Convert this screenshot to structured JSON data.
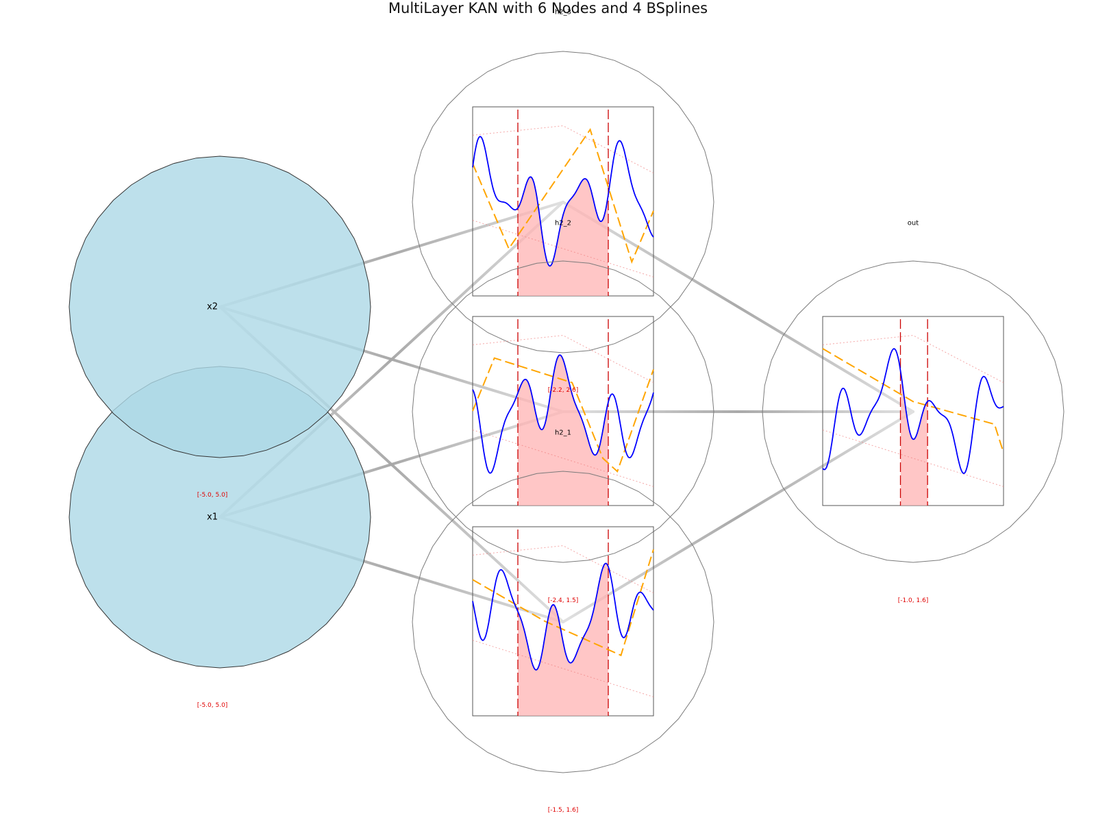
{
  "title": "MultiLayer KAN with 6 Nodes and 4 BSplines",
  "colors": {
    "input_fill": "#add8e6",
    "spline": "#0000ff",
    "trend": "#ffa500",
    "shade": "#ffb3b3",
    "bounds": "#cc0000",
    "range_text": "#e00000",
    "edge": "#999999"
  },
  "nodes": {
    "x2": {
      "label": "x2",
      "range": "[-5.0, 5.0]"
    },
    "x1": {
      "label": "x1",
      "range": "[-5.0, 5.0]"
    },
    "h2_3": {
      "label": "h2_3",
      "range": "[-2.2, 2.6]"
    },
    "h2_2": {
      "label": "h2_2",
      "range": "[-2.4, 1.5]"
    },
    "h2_1": {
      "label": "h2_1",
      "range": "[-1.5, 1.6]"
    },
    "out": {
      "label": "out",
      "range": "[-1.0, 1.6]"
    }
  }
}
